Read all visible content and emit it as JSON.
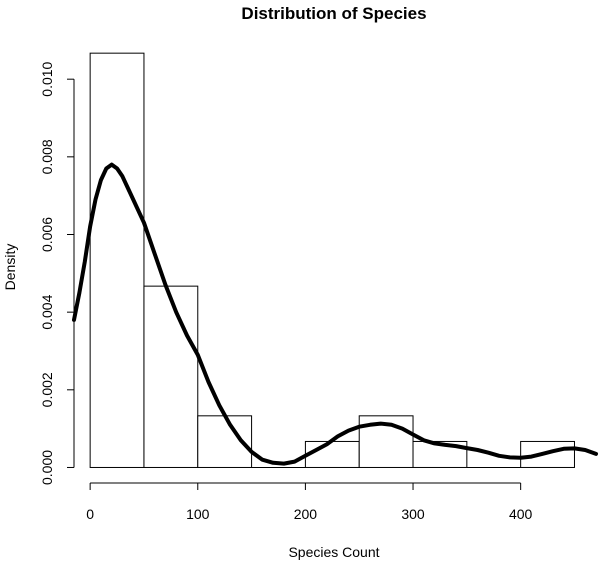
{
  "chart_data": {
    "type": "histogram",
    "title": "Distribution of Species",
    "xlabel": "Species Count",
    "ylabel": "Density",
    "xlim": [
      -15,
      470
    ],
    "ylim": [
      -0.0004,
      0.0107
    ],
    "x_ticks": [
      0,
      100,
      200,
      300,
      400
    ],
    "x_tick_labels": [
      "0",
      "100",
      "200",
      "300",
      "400"
    ],
    "y_ticks": [
      0,
      0.002,
      0.004,
      0.006,
      0.008,
      0.01
    ],
    "y_tick_labels": [
      "0.000",
      "0.002",
      "0.004",
      "0.006",
      "0.008",
      "0.010"
    ],
    "bin_edges": [
      0,
      50,
      100,
      150,
      200,
      250,
      300,
      350,
      400,
      450
    ],
    "bin_density": [
      0.01067,
      0.00467,
      0.00133,
      0,
      0.00067,
      0.00133,
      0.00067,
      0,
      0.00067
    ],
    "density_curve": {
      "x": [
        -15,
        -10,
        -5,
        0,
        5,
        10,
        15,
        20,
        25,
        30,
        35,
        40,
        50,
        60,
        70,
        80,
        90,
        100,
        110,
        120,
        130,
        140,
        150,
        160,
        170,
        180,
        190,
        200,
        210,
        220,
        230,
        240,
        250,
        260,
        270,
        280,
        290,
        300,
        310,
        320,
        330,
        340,
        350,
        360,
        370,
        380,
        390,
        400,
        410,
        420,
        430,
        440,
        450,
        460,
        470
      ],
      "y": [
        0.0038,
        0.0045,
        0.0053,
        0.0062,
        0.0069,
        0.0074,
        0.0077,
        0.0078,
        0.0077,
        0.0075,
        0.0072,
        0.0069,
        0.0063,
        0.0055,
        0.0047,
        0.004,
        0.0034,
        0.0029,
        0.0022,
        0.0016,
        0.0011,
        0.0007,
        0.0004,
        0.0002,
        0.00012,
        0.0001,
        0.00015,
        0.0003,
        0.00045,
        0.0006,
        0.0008,
        0.00095,
        0.00105,
        0.0011,
        0.00113,
        0.0011,
        0.001,
        0.00085,
        0.0007,
        0.00062,
        0.00058,
        0.00055,
        0.0005,
        0.00045,
        0.00038,
        0.0003,
        0.00026,
        0.00025,
        0.00028,
        0.00035,
        0.00042,
        0.00048,
        0.00049,
        0.00045,
        0.00035
      ]
    },
    "grid": false,
    "legend": "none"
  }
}
